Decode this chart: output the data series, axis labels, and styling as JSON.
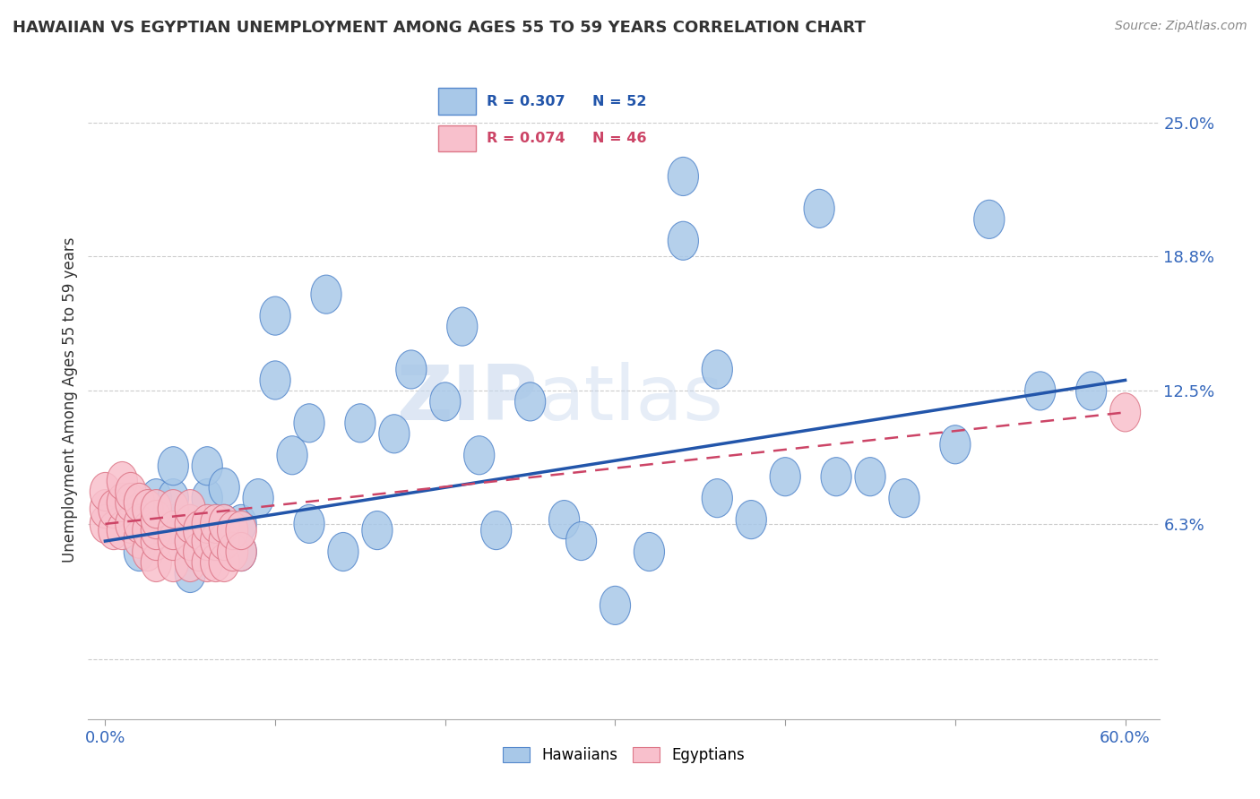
{
  "title": "HAWAIIAN VS EGYPTIAN UNEMPLOYMENT AMONG AGES 55 TO 59 YEARS CORRELATION CHART",
  "source": "Source: ZipAtlas.com",
  "ylabel": "Unemployment Among Ages 55 to 59 years",
  "xlim": [
    -0.01,
    0.62
  ],
  "ylim": [
    -0.028,
    0.27
  ],
  "ytick_vals": [
    0.0,
    0.063,
    0.125,
    0.188,
    0.25
  ],
  "ytick_labels": [
    "",
    "6.3%",
    "12.5%",
    "18.8%",
    "25.0%"
  ],
  "xtick_vals": [
    0.0,
    0.1,
    0.2,
    0.3,
    0.4,
    0.5,
    0.6
  ],
  "xtick_labels": [
    "0.0%",
    "",
    "",
    "",
    "",
    "",
    "60.0%"
  ],
  "hawaiian_R": 0.307,
  "hawaiian_N": 52,
  "egyptian_R": 0.074,
  "egyptian_N": 46,
  "hawaiian_color": "#a8c8e8",
  "hawaiian_edge": "#5588cc",
  "egyptian_color": "#f8c0cc",
  "egyptian_edge": "#dd7788",
  "trendline_hawaiian_color": "#2255aa",
  "trendline_egyptian_color": "#cc4466",
  "watermark_zip": "ZIP",
  "watermark_atlas": "atlas",
  "hawaiian_x": [
    0.02,
    0.02,
    0.02,
    0.03,
    0.03,
    0.04,
    0.04,
    0.04,
    0.05,
    0.05,
    0.05,
    0.06,
    0.06,
    0.07,
    0.07,
    0.08,
    0.08,
    0.09,
    0.1,
    0.1,
    0.11,
    0.12,
    0.12,
    0.13,
    0.14,
    0.15,
    0.16,
    0.17,
    0.18,
    0.2,
    0.21,
    0.22,
    0.23,
    0.25,
    0.27,
    0.28,
    0.3,
    0.32,
    0.34,
    0.34,
    0.36,
    0.36,
    0.38,
    0.4,
    0.42,
    0.43,
    0.45,
    0.47,
    0.5,
    0.52,
    0.55,
    0.58
  ],
  "hawaiian_y": [
    0.063,
    0.063,
    0.05,
    0.063,
    0.075,
    0.063,
    0.075,
    0.09,
    0.063,
    0.05,
    0.04,
    0.075,
    0.09,
    0.08,
    0.063,
    0.063,
    0.05,
    0.075,
    0.13,
    0.16,
    0.095,
    0.063,
    0.11,
    0.17,
    0.05,
    0.11,
    0.06,
    0.105,
    0.135,
    0.12,
    0.155,
    0.095,
    0.06,
    0.12,
    0.065,
    0.055,
    0.025,
    0.05,
    0.195,
    0.225,
    0.075,
    0.135,
    0.065,
    0.085,
    0.21,
    0.085,
    0.085,
    0.075,
    0.1,
    0.205,
    0.125,
    0.125
  ],
  "egyptian_x": [
    0.0,
    0.0,
    0.0,
    0.005,
    0.005,
    0.01,
    0.01,
    0.01,
    0.015,
    0.015,
    0.015,
    0.02,
    0.02,
    0.02,
    0.025,
    0.025,
    0.025,
    0.03,
    0.03,
    0.03,
    0.03,
    0.03,
    0.04,
    0.04,
    0.04,
    0.04,
    0.05,
    0.05,
    0.05,
    0.05,
    0.055,
    0.055,
    0.06,
    0.06,
    0.06,
    0.065,
    0.065,
    0.065,
    0.07,
    0.07,
    0.07,
    0.075,
    0.075,
    0.08,
    0.08,
    0.6
  ],
  "egyptian_y": [
    0.063,
    0.07,
    0.078,
    0.06,
    0.07,
    0.06,
    0.073,
    0.083,
    0.063,
    0.073,
    0.078,
    0.056,
    0.063,
    0.073,
    0.05,
    0.06,
    0.07,
    0.045,
    0.055,
    0.06,
    0.065,
    0.07,
    0.045,
    0.055,
    0.06,
    0.07,
    0.045,
    0.055,
    0.063,
    0.07,
    0.05,
    0.06,
    0.045,
    0.055,
    0.063,
    0.045,
    0.055,
    0.063,
    0.045,
    0.055,
    0.063,
    0.05,
    0.06,
    0.05,
    0.06,
    0.115
  ],
  "trendline_h_x0": 0.0,
  "trendline_h_y0": 0.055,
  "trendline_h_x1": 0.6,
  "trendline_h_y1": 0.13,
  "trendline_e_x0": 0.0,
  "trendline_e_y0": 0.063,
  "trendline_e_x1": 0.6,
  "trendline_e_y1": 0.115
}
